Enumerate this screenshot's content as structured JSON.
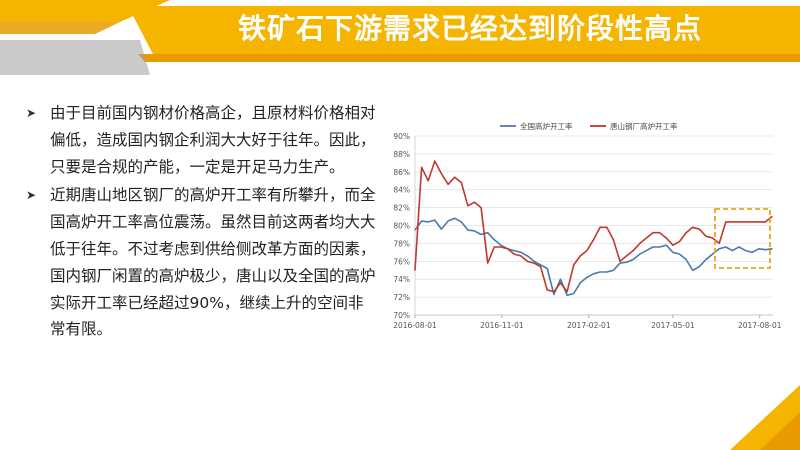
{
  "slide": {
    "title": "铁矿石下游需求已经达到阶段性高点",
    "bullets": [
      "由于目前国内钢材价格高企，且原材料价格相对偏低，造成国内钢企利润大大好于往年。因此，只要是合规的产能，一定是开足马力生产。",
      "近期唐山地区钢厂的高炉开工率有所攀升，而全国高炉开工率高位震荡。虽然目前这两者均大大低于往年。不过考虑到供给侧改革方面的因素，国内钢厂闲置的高炉极少，唐山以及全国的高炉实际开工率已经超过90%，继续上升的空间非常有限。"
    ],
    "bullet_marker": "➤"
  },
  "colors": {
    "accent": "#F5B400",
    "accent_dark": "#E89A00",
    "national": "#4A7AB0",
    "tangshan": "#C0392B",
    "grid": "#E2E2E2",
    "highlight": "#E6A817"
  },
  "chart_data": {
    "type": "line",
    "x_ticks": [
      "2016-08-01",
      "2016-11-01",
      "2017-02-01",
      "2017-05-01",
      "2017-08-01"
    ],
    "y_ticks": [
      "70%",
      "72%",
      "74%",
      "76%",
      "78%",
      "80%",
      "82%",
      "84%",
      "86%",
      "88%",
      "90%"
    ],
    "ylim": [
      70,
      90
    ],
    "xlim": [
      "2016-08-01",
      "2017-08-15"
    ],
    "grid": true,
    "legend_position": "top",
    "series": [
      {
        "name": "全国高炉开工率",
        "color": "#4A7AB0",
        "x": [
          "2016-08-01",
          "2016-08-08",
          "2016-08-15",
          "2016-08-22",
          "2016-08-29",
          "2016-09-05",
          "2016-09-12",
          "2016-09-19",
          "2016-09-26",
          "2016-10-03",
          "2016-10-10",
          "2016-10-17",
          "2016-10-24",
          "2016-10-31",
          "2016-11-07",
          "2016-11-14",
          "2016-11-21",
          "2016-11-28",
          "2016-12-05",
          "2016-12-12",
          "2016-12-19",
          "2016-12-26",
          "2017-01-02",
          "2017-01-09",
          "2017-01-16",
          "2017-01-23",
          "2017-01-30",
          "2017-02-06",
          "2017-02-13",
          "2017-02-20",
          "2017-02-27",
          "2017-03-06",
          "2017-03-13",
          "2017-03-20",
          "2017-03-27",
          "2017-04-03",
          "2017-04-10",
          "2017-04-17",
          "2017-04-24",
          "2017-05-01",
          "2017-05-08",
          "2017-05-15",
          "2017-05-22",
          "2017-05-29",
          "2017-06-05",
          "2017-06-12",
          "2017-06-19",
          "2017-06-26",
          "2017-07-03",
          "2017-07-10",
          "2017-07-17",
          "2017-07-24",
          "2017-07-31",
          "2017-08-07",
          "2017-08-14"
        ],
        "values": [
          79.5,
          80.5,
          80.4,
          80.6,
          79.6,
          80.5,
          80.8,
          80.4,
          79.5,
          79.4,
          79.0,
          79.2,
          78.4,
          77.8,
          77.4,
          77.2,
          77.0,
          76.6,
          76.0,
          75.6,
          75.2,
          72.3,
          74.0,
          72.2,
          72.4,
          73.6,
          74.2,
          74.6,
          74.8,
          74.8,
          75.0,
          75.8,
          75.9,
          76.2,
          76.8,
          77.2,
          77.6,
          77.6,
          77.8,
          77.0,
          76.8,
          76.2,
          75.0,
          75.4,
          76.2,
          76.8,
          77.4,
          77.6,
          77.2,
          77.6,
          77.2,
          77.0,
          77.4,
          77.3,
          77.4
        ]
      },
      {
        "name": "唐山钢厂高炉开工率",
        "color": "#C0392B",
        "x": [
          "2016-08-01",
          "2016-08-08",
          "2016-08-15",
          "2016-08-22",
          "2016-08-29",
          "2016-09-05",
          "2016-09-12",
          "2016-09-19",
          "2016-09-26",
          "2016-10-03",
          "2016-10-10",
          "2016-10-17",
          "2016-10-24",
          "2016-10-31",
          "2016-11-07",
          "2016-11-14",
          "2016-11-21",
          "2016-11-28",
          "2016-12-05",
          "2016-12-12",
          "2016-12-19",
          "2016-12-26",
          "2017-01-02",
          "2017-01-09",
          "2017-01-16",
          "2017-01-23",
          "2017-01-30",
          "2017-02-06",
          "2017-02-13",
          "2017-02-20",
          "2017-02-27",
          "2017-03-06",
          "2017-03-13",
          "2017-03-20",
          "2017-03-27",
          "2017-04-03",
          "2017-04-10",
          "2017-04-17",
          "2017-04-24",
          "2017-05-01",
          "2017-05-08",
          "2017-05-15",
          "2017-05-22",
          "2017-05-29",
          "2017-06-05",
          "2017-06-12",
          "2017-06-19",
          "2017-06-26",
          "2017-07-03",
          "2017-07-10",
          "2017-07-17",
          "2017-07-24",
          "2017-07-31",
          "2017-08-07",
          "2017-08-14"
        ],
        "values": [
          75.0,
          86.5,
          85.0,
          87.2,
          85.8,
          84.6,
          85.4,
          84.8,
          82.2,
          82.6,
          82.0,
          75.8,
          77.6,
          77.6,
          77.4,
          76.8,
          76.6,
          76.0,
          75.8,
          75.4,
          72.8,
          72.6,
          73.6,
          72.6,
          75.6,
          76.6,
          77.2,
          78.4,
          79.8,
          79.8,
          78.4,
          76.0,
          76.6,
          77.2,
          78.0,
          78.6,
          79.2,
          79.2,
          78.6,
          77.8,
          78.2,
          79.2,
          79.8,
          79.6,
          78.8,
          78.6,
          78.0,
          80.4,
          80.4,
          80.4,
          80.4,
          80.4,
          80.4,
          80.4,
          81.0
        ]
      }
    ]
  }
}
